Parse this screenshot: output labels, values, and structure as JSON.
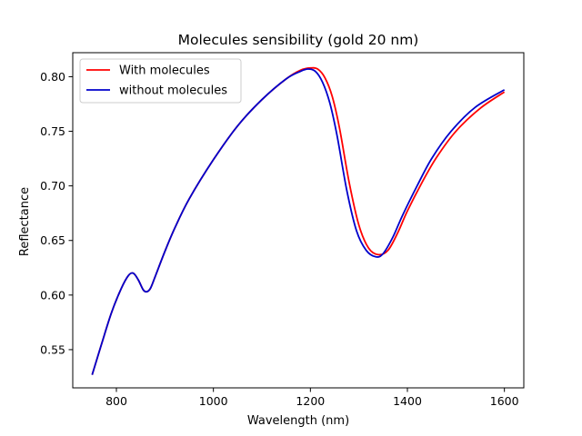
{
  "chart_data": {
    "type": "line",
    "title": "Molecules sensibility (gold 20 nm)",
    "xlabel": "Wavelength (nm)",
    "ylabel": "Reflectance",
    "xlim": [
      710,
      1640
    ],
    "ylim": [
      0.515,
      0.822
    ],
    "xticks": [
      800,
      1000,
      1200,
      1400,
      1600
    ],
    "yticks": [
      0.55,
      0.6,
      0.65,
      0.7,
      0.75,
      0.8
    ],
    "grid": false,
    "legend_position": "top-left",
    "series": [
      {
        "name": "With molecules",
        "color": "#ff0000",
        "points": [
          [
            750,
            0.527
          ],
          [
            770,
            0.556
          ],
          [
            790,
            0.584
          ],
          [
            810,
            0.606
          ],
          [
            825,
            0.618
          ],
          [
            835,
            0.62
          ],
          [
            845,
            0.614
          ],
          [
            855,
            0.605
          ],
          [
            862,
            0.603
          ],
          [
            870,
            0.606
          ],
          [
            880,
            0.617
          ],
          [
            900,
            0.64
          ],
          [
            920,
            0.661
          ],
          [
            950,
            0.688
          ],
          [
            1000,
            0.724
          ],
          [
            1050,
            0.755
          ],
          [
            1100,
            0.779
          ],
          [
            1150,
            0.798
          ],
          [
            1180,
            0.806
          ],
          [
            1200,
            0.808
          ],
          [
            1215,
            0.807
          ],
          [
            1230,
            0.799
          ],
          [
            1245,
            0.782
          ],
          [
            1260,
            0.753
          ],
          [
            1280,
            0.703
          ],
          [
            1300,
            0.664
          ],
          [
            1320,
            0.643
          ],
          [
            1340,
            0.637
          ],
          [
            1360,
            0.641
          ],
          [
            1380,
            0.657
          ],
          [
            1400,
            0.677
          ],
          [
            1430,
            0.703
          ],
          [
            1460,
            0.726
          ],
          [
            1500,
            0.75
          ],
          [
            1550,
            0.771
          ],
          [
            1600,
            0.786
          ]
        ]
      },
      {
        "name": "without molecules",
        "color": "#0000cc",
        "points": [
          [
            750,
            0.527
          ],
          [
            770,
            0.556
          ],
          [
            790,
            0.584
          ],
          [
            810,
            0.606
          ],
          [
            825,
            0.618
          ],
          [
            835,
            0.62
          ],
          [
            845,
            0.614
          ],
          [
            855,
            0.605
          ],
          [
            862,
            0.603
          ],
          [
            870,
            0.606
          ],
          [
            880,
            0.617
          ],
          [
            900,
            0.64
          ],
          [
            920,
            0.661
          ],
          [
            950,
            0.688
          ],
          [
            1000,
            0.724
          ],
          [
            1050,
            0.755
          ],
          [
            1100,
            0.779
          ],
          [
            1150,
            0.798
          ],
          [
            1180,
            0.805
          ],
          [
            1195,
            0.807
          ],
          [
            1210,
            0.805
          ],
          [
            1225,
            0.795
          ],
          [
            1240,
            0.776
          ],
          [
            1255,
            0.746
          ],
          [
            1275,
            0.696
          ],
          [
            1295,
            0.659
          ],
          [
            1315,
            0.641
          ],
          [
            1335,
            0.635
          ],
          [
            1350,
            0.638
          ],
          [
            1370,
            0.653
          ],
          [
            1390,
            0.673
          ],
          [
            1420,
            0.7
          ],
          [
            1450,
            0.725
          ],
          [
            1490,
            0.75
          ],
          [
            1540,
            0.772
          ],
          [
            1600,
            0.788
          ]
        ]
      }
    ]
  }
}
